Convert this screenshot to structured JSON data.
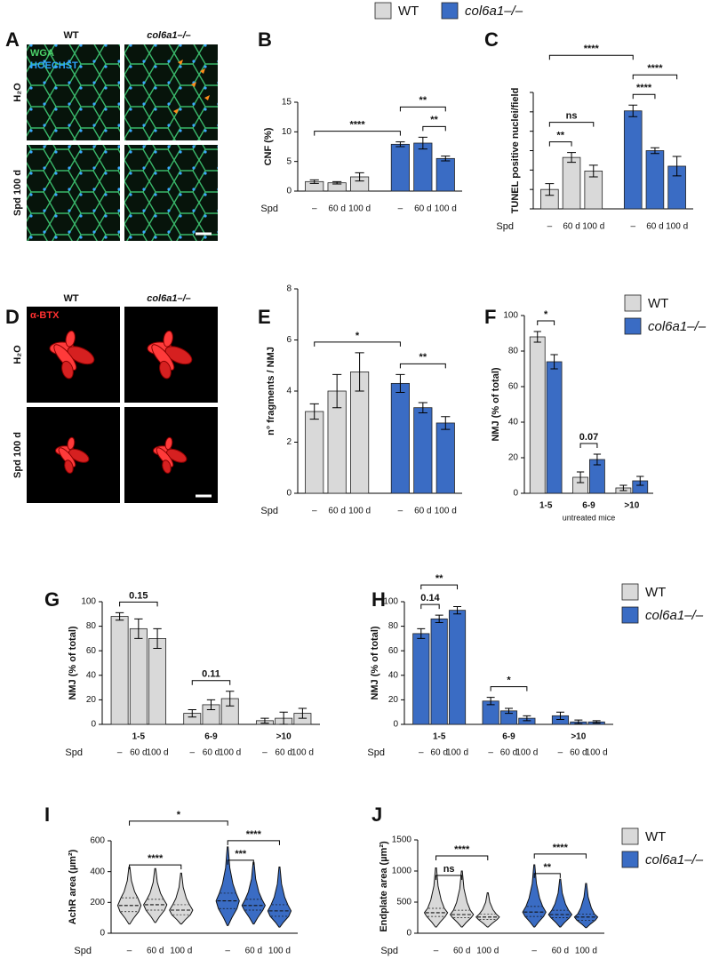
{
  "legend": [
    {
      "name": "WT",
      "color": "#d9d9d9"
    },
    {
      "name": "col6a1–/–",
      "color": "#3a6cc4"
    }
  ],
  "image_panels": [
    {
      "panel": "A",
      "columns": [
        "WT",
        "col6a1–/–"
      ],
      "rows": [
        "H₂O",
        "Spd 100 d"
      ],
      "stains": [
        "WGA",
        "HOECHST"
      ]
    },
    {
      "panel": "D",
      "columns": [
        "WT",
        "col6a1–/–"
      ],
      "rows": [
        "H₂O",
        "Spd 100 d"
      ],
      "stains": [
        "α-BTX"
      ]
    }
  ],
  "chart_data": [
    {
      "type": "bar",
      "panel": "B",
      "ylabel": "CNF (%)",
      "ylim": [
        0,
        15
      ],
      "yticks": [
        0,
        5,
        10,
        15
      ],
      "x_prefix": "Spd",
      "categories": [
        "–",
        "60 d",
        "100 d",
        "–",
        "60 d",
        "100 d"
      ],
      "values": [
        1.6,
        1.4,
        2.4,
        7.9,
        8.1,
        5.5
      ],
      "errors": [
        0.3,
        0.2,
        0.7,
        0.4,
        1.0,
        0.4
      ],
      "colors": [
        "#d9d9d9",
        "#d9d9d9",
        "#d9d9d9",
        "#3a6cc4",
        "#3a6cc4",
        "#3a6cc4"
      ],
      "annotations": [
        {
          "label": "**",
          "from": 4,
          "to": 5
        },
        {
          "label": "****",
          "from": 0,
          "to": 3
        },
        {
          "label": "**",
          "from": 3,
          "to": 5
        }
      ]
    },
    {
      "type": "bar",
      "panel": "C",
      "ylabel": "TUNEL positive nuclei/field",
      "ylim": [
        0,
        6
      ],
      "yticks": [
        0,
        1,
        2,
        3,
        4,
        5,
        6
      ],
      "tick_labels": false,
      "x_prefix": "Spd",
      "categories": [
        "–",
        "60 d",
        "100 d",
        "–",
        "60 d",
        "100 d"
      ],
      "values": [
        1.0,
        2.65,
        1.95,
        5.05,
        3.0,
        2.2
      ],
      "errors": [
        0.3,
        0.25,
        0.3,
        0.3,
        0.15,
        0.5
      ],
      "colors": [
        "#d9d9d9",
        "#d9d9d9",
        "#d9d9d9",
        "#3a6cc4",
        "#3a6cc4",
        "#3a6cc4"
      ],
      "annotations": [
        {
          "label": "**",
          "from": 0,
          "to": 1
        },
        {
          "label": "ns",
          "from": 0,
          "to": 2
        },
        {
          "label": "****",
          "from": 3,
          "to": 4
        },
        {
          "label": "****",
          "from": 3,
          "to": 5
        },
        {
          "label": "****",
          "from": 0,
          "to": 3
        }
      ]
    },
    {
      "type": "bar",
      "panel": "E",
      "ylabel": "n° fragments / NMJ",
      "ylim": [
        0,
        8
      ],
      "yticks": [
        0,
        2,
        4,
        6,
        8
      ],
      "x_prefix": "Spd",
      "categories": [
        "–",
        "60 d",
        "100 d",
        "–",
        "60 d",
        "100 d"
      ],
      "values": [
        3.2,
        4.0,
        4.75,
        4.3,
        3.35,
        2.75
      ],
      "errors": [
        0.3,
        0.65,
        0.75,
        0.35,
        0.2,
        0.25
      ],
      "colors": [
        "#d9d9d9",
        "#d9d9d9",
        "#d9d9d9",
        "#3a6cc4",
        "#3a6cc4",
        "#3a6cc4"
      ],
      "annotations": [
        {
          "label": "**",
          "from": 3,
          "to": 5
        },
        {
          "label": "*",
          "from": 0,
          "to": 3
        }
      ]
    },
    {
      "type": "grouped_bar",
      "panel": "F",
      "ylabel": "NMJ (% of total)",
      "ylim": [
        0,
        100
      ],
      "yticks": [
        0,
        20,
        40,
        60,
        80,
        100
      ],
      "xlabel": "untreated mice",
      "categories": [
        "1-5",
        "6-9",
        ">10"
      ],
      "legend": "series",
      "series": [
        {
          "name": "WT",
          "color": "#d9d9d9",
          "values": [
            88,
            9,
            3
          ],
          "errors": [
            3,
            3,
            1.5
          ]
        },
        {
          "name": "col6a1–/–",
          "color": "#3a6cc4",
          "values": [
            74,
            19,
            7
          ],
          "errors": [
            4,
            3,
            2.5
          ]
        }
      ],
      "annotations": [
        {
          "label": "*",
          "group": 0,
          "from": 0,
          "to": 1
        },
        {
          "label": 0.07,
          "group": 1,
          "from": 0,
          "to": 1
        }
      ]
    },
    {
      "type": "grouped_bar",
      "panel": "G",
      "ylabel": "NMJ (% of total)",
      "ylim": [
        0,
        100
      ],
      "yticks": [
        0,
        20,
        40,
        60,
        80,
        100
      ],
      "x_prefix": "Spd",
      "categories": [
        "1-5",
        "6-9",
        ">10"
      ],
      "series": [
        {
          "name": "–",
          "color": "#d9d9d9",
          "values": [
            88,
            9,
            3
          ],
          "errors": [
            3,
            3,
            2
          ]
        },
        {
          "name": "60 d",
          "color": "#d9d9d9",
          "values": [
            78,
            16,
            5
          ],
          "errors": [
            8,
            4,
            5
          ]
        },
        {
          "name": "100 d",
          "color": "#d9d9d9",
          "values": [
            70,
            21,
            9
          ],
          "errors": [
            8,
            6,
            4
          ]
        }
      ],
      "annotations": [
        {
          "label": 0.15,
          "group": 0,
          "from": 0,
          "to": 2
        },
        {
          "label": 0.11,
          "group": 1,
          "from": 0,
          "to": 2
        }
      ]
    },
    {
      "type": "grouped_bar",
      "panel": "H",
      "ylabel": "NMJ (% of total)",
      "ylim": [
        0,
        100
      ],
      "yticks": [
        0,
        20,
        40,
        60,
        80,
        100
      ],
      "x_prefix": "Spd",
      "legend": "figure",
      "categories": [
        "1-5",
        "6-9",
        ">10"
      ],
      "series": [
        {
          "name": "–",
          "color": "#3a6cc4",
          "values": [
            74,
            19,
            7
          ],
          "errors": [
            4,
            3,
            3
          ]
        },
        {
          "name": "60 d",
          "color": "#3a6cc4",
          "values": [
            86,
            11,
            2
          ],
          "errors": [
            3,
            2,
            1.5
          ]
        },
        {
          "name": "100 d",
          "color": "#3a6cc4",
          "values": [
            93,
            5,
            2
          ],
          "errors": [
            3,
            2,
            1
          ]
        }
      ],
      "annotations": [
        {
          "label": 0.14,
          "group": 0,
          "from": 0,
          "to": 1
        },
        {
          "label": "**",
          "group": 0,
          "from": 0,
          "to": 2
        },
        {
          "label": "*",
          "group": 1,
          "from": 0,
          "to": 2
        }
      ]
    },
    {
      "type": "violin",
      "panel": "I",
      "ylabel": "AchR area (µm²)",
      "ylim": [
        0,
        600
      ],
      "yticks": [
        0,
        200,
        400,
        600
      ],
      "x_prefix": "Spd",
      "categories": [
        "–",
        "60 d",
        "100 d",
        "–",
        "60 d",
        "100 d"
      ],
      "min": [
        60,
        70,
        60,
        50,
        60,
        40
      ],
      "q1": [
        140,
        150,
        120,
        160,
        150,
        110
      ],
      "median": [
        180,
        185,
        150,
        210,
        180,
        145
      ],
      "q3": [
        230,
        220,
        185,
        260,
        220,
        185
      ],
      "max": [
        430,
        420,
        390,
        560,
        460,
        430
      ],
      "colors": [
        "#d9d9d9",
        "#d9d9d9",
        "#d9d9d9",
        "#3a6cc4",
        "#3a6cc4",
        "#3a6cc4"
      ],
      "annotations": [
        {
          "label": "****",
          "from": 0,
          "to": 2
        },
        {
          "label": "***",
          "from": 3,
          "to": 4
        },
        {
          "label": "****",
          "from": 3,
          "to": 5
        },
        {
          "label": "*",
          "from": 0,
          "to": 3
        }
      ]
    },
    {
      "type": "violin",
      "panel": "J",
      "ylabel": "Endplate area (µm²)",
      "ylim": [
        0,
        1500
      ],
      "yticks": [
        0,
        500,
        1000,
        1500
      ],
      "x_prefix": "Spd",
      "legend": "figure",
      "categories": [
        "–",
        "60 d",
        "100 d",
        "–",
        "60 d",
        "100 d"
      ],
      "min": [
        100,
        100,
        100,
        100,
        100,
        90
      ],
      "q1": [
        270,
        250,
        220,
        270,
        250,
        210
      ],
      "median": [
        330,
        300,
        260,
        340,
        300,
        260
      ],
      "q3": [
        400,
        370,
        310,
        430,
        370,
        310
      ],
      "max": [
        1050,
        1000,
        650,
        1100,
        870,
        800
      ],
      "colors": [
        "#d9d9d9",
        "#d9d9d9",
        "#d9d9d9",
        "#3a6cc4",
        "#3a6cc4",
        "#3a6cc4"
      ],
      "annotations": [
        {
          "label": "ns",
          "from": 0,
          "to": 1
        },
        {
          "label": "****",
          "from": 0,
          "to": 2
        },
        {
          "label": "**",
          "from": 3,
          "to": 4
        },
        {
          "label": "****",
          "from": 3,
          "to": 5
        }
      ]
    }
  ]
}
